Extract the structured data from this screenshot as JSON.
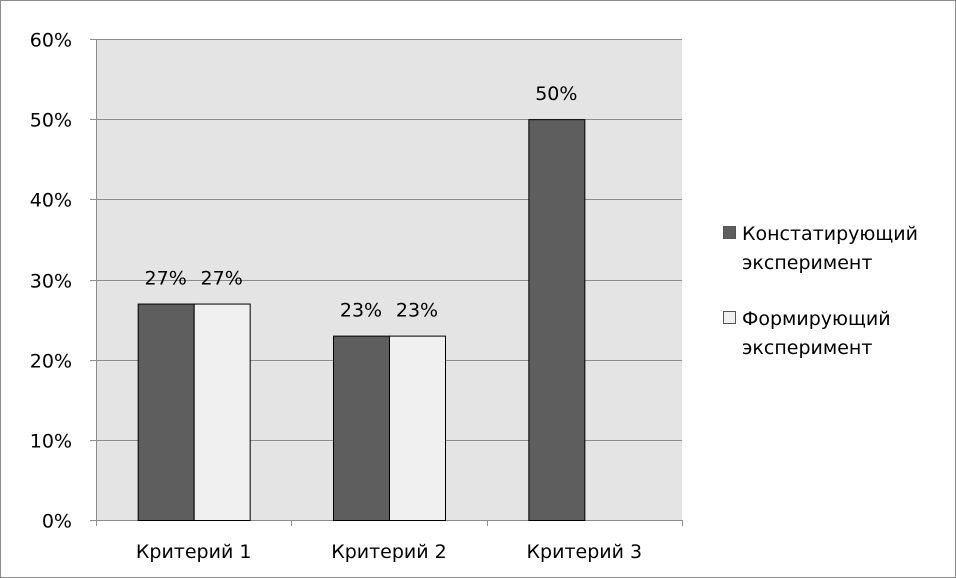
{
  "chart_data": {
    "type": "bar",
    "categories": [
      "Критерий 1",
      "Критерий 2",
      "Критерий 3"
    ],
    "series": [
      {
        "name": "Констатирующий эксперимент",
        "values": [
          27,
          23,
          50
        ],
        "labels": [
          "27%",
          "23%",
          "50%"
        ],
        "color": "#5e5e5e"
      },
      {
        "name": "Формирующий эксперимент",
        "values": [
          27,
          23,
          null
        ],
        "labels": [
          "27%",
          "23%",
          ""
        ],
        "color": "#f0f0f0"
      }
    ],
    "ylim": [
      0,
      60
    ],
    "yticks": [
      "0%",
      "10%",
      "20%",
      "30%",
      "40%",
      "50%",
      "60%"
    ],
    "grid": true,
    "legend_position": "right",
    "plot_background": "#e4e4e4",
    "gridline_color": "#8c8c8c",
    "bar_outline_color": "#000000"
  },
  "legend": {
    "items": [
      {
        "lines": [
          "Констатирующий",
          "эксперимент"
        ],
        "color": "#5e5e5e"
      },
      {
        "lines": [
          "Формирующий",
          "эксперимент"
        ],
        "color": "#f0f0f0"
      }
    ]
  }
}
